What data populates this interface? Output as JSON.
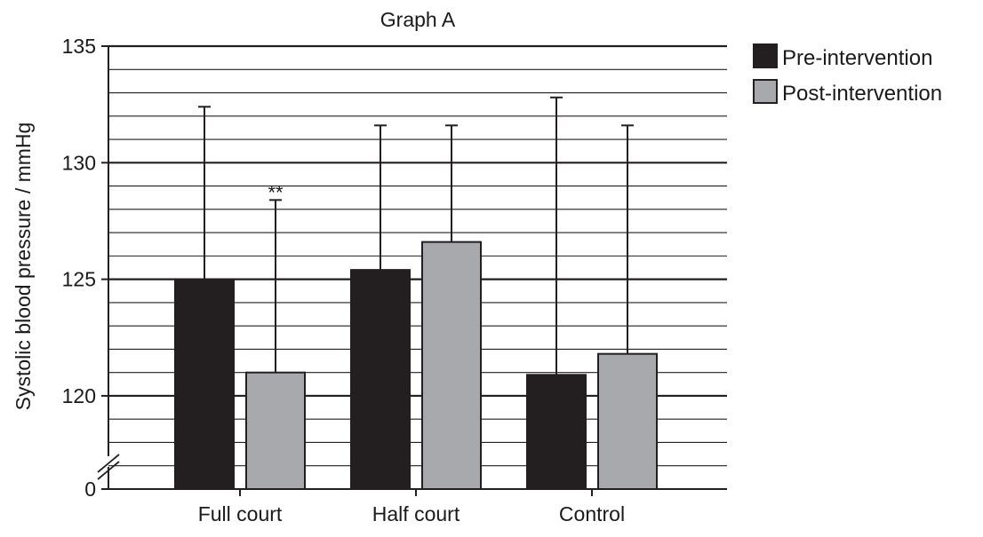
{
  "chart_data": {
    "type": "bar",
    "title": "Graph A",
    "xlabel": "",
    "ylabel": "Systolic blood pressure / mmHg",
    "categories": [
      "Full court",
      "Half court",
      "Control"
    ],
    "series": [
      {
        "name": "Pre-intervention",
        "color": "#231f20",
        "values": [
          125.0,
          125.4,
          120.9
        ],
        "error_upper": [
          132.4,
          131.6,
          132.8
        ],
        "annotations": [
          "",
          "",
          ""
        ]
      },
      {
        "name": "Post-intervention",
        "color": "#a7a9ac",
        "values": [
          121.0,
          126.6,
          121.8
        ],
        "error_upper": [
          128.4,
          131.6,
          131.6
        ],
        "annotations": [
          "**",
          "",
          ""
        ]
      }
    ],
    "ylim": [
      116,
      135
    ],
    "y_axis_zero_label": "0",
    "y_axis_break": true,
    "y_ticks_major": [
      120,
      125,
      130,
      135
    ],
    "y_minor_step": 1,
    "grid": true,
    "legend_position": "top-right"
  }
}
